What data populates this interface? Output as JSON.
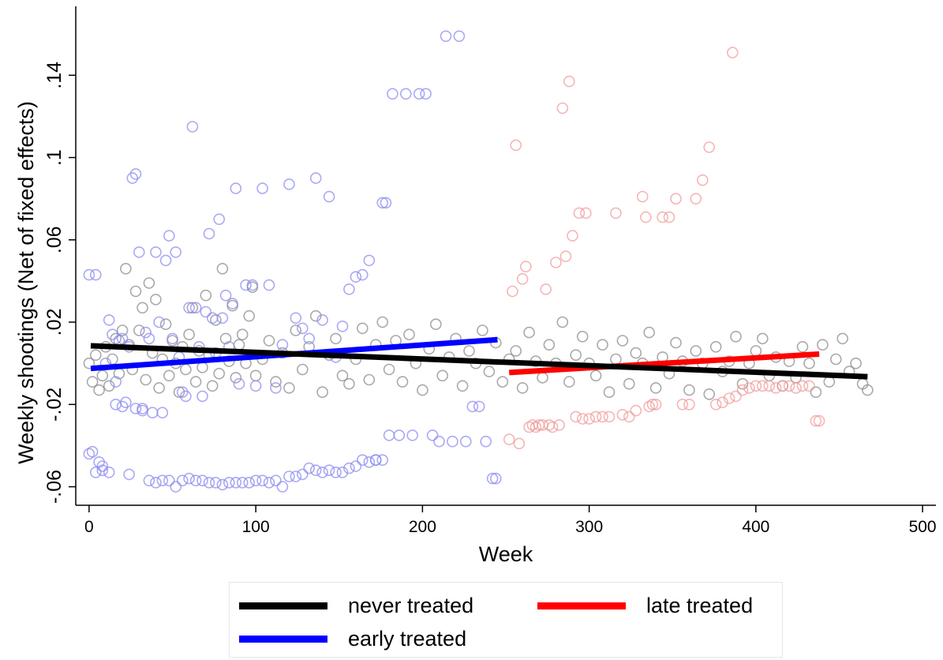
{
  "chart_data": {
    "type": "scatter",
    "title": "",
    "xlabel": "Week",
    "ylabel": "Weekly shootings (Net of fixed effects)",
    "xlim": [
      -8,
      508
    ],
    "ylim": [
      -0.069,
      0.1735
    ],
    "xticks": [
      0,
      100,
      200,
      300,
      400,
      500
    ],
    "xtick_labels": [
      "0",
      "100",
      "200",
      "300",
      "400",
      "500"
    ],
    "yticks": [
      -0.06,
      -0.02,
      0.02,
      0.06,
      0.1,
      0.14
    ],
    "ytick_labels": [
      "-.06",
      "-.02",
      ".02",
      ".06",
      ".1",
      ".14"
    ],
    "grid": false,
    "legend_position": "bottom",
    "series": [
      {
        "name": "never treated",
        "color": "#000000",
        "marker_color": "#8c8c8c",
        "fit": {
          "x": [
            1,
            467
          ],
          "y": [
            0.0085,
            -0.0065
          ]
        },
        "points": {
          "x": [
            0,
            2,
            4,
            6,
            8,
            10,
            12,
            14,
            16,
            18,
            20,
            22,
            24,
            26,
            28,
            30,
            32,
            34,
            36,
            38,
            40,
            42,
            44,
            46,
            48,
            50,
            52,
            54,
            56,
            58,
            60,
            62,
            64,
            66,
            68,
            70,
            72,
            74,
            76,
            78,
            80,
            82,
            84,
            86,
            88,
            90,
            92,
            94,
            96,
            98,
            100,
            104,
            108,
            112,
            116,
            120,
            124,
            128,
            132,
            136,
            140,
            144,
            148,
            152,
            156,
            160,
            164,
            168,
            172,
            176,
            180,
            184,
            188,
            192,
            196,
            200,
            204,
            208,
            212,
            216,
            220,
            224,
            228,
            232,
            236,
            240,
            244,
            248,
            252,
            256,
            260,
            264,
            268,
            272,
            276,
            280,
            284,
            288,
            292,
            296,
            300,
            304,
            308,
            312,
            316,
            320,
            324,
            328,
            332,
            336,
            340,
            344,
            348,
            352,
            356,
            360,
            364,
            368,
            372,
            376,
            380,
            384,
            388,
            392,
            396,
            400,
            404,
            408,
            412,
            416,
            420,
            424,
            428,
            432,
            436,
            440,
            444,
            448,
            452,
            456,
            460,
            464,
            467
          ],
          "y": [
            0.0,
            -0.009,
            0.004,
            -0.013,
            -0.006,
            0.008,
            -0.011,
            0.002,
            0.012,
            -0.005,
            0.016,
            0.046,
            0.009,
            -0.003,
            0.035,
            0.016,
            0.027,
            -0.008,
            0.039,
            0.005,
            0.031,
            -0.012,
            0.002,
            0.019,
            -0.006,
            0.011,
            0.0,
            -0.014,
            0.008,
            -0.003,
            0.014,
            0.027,
            -0.009,
            0.006,
            -0.002,
            0.033,
            0.004,
            -0.011,
            0.021,
            -0.005,
            0.046,
            0.012,
            0.001,
            0.028,
            -0.007,
            0.009,
            0.014,
            0.0,
            0.023,
            0.037,
            -0.006,
            0.002,
            0.011,
            -0.009,
            0.005,
            -0.012,
            0.016,
            -0.003,
            0.008,
            0.023,
            -0.014,
            0.004,
            0.012,
            -0.006,
            -0.01,
            0.002,
            0.017,
            -0.008,
            0.009,
            0.02,
            -0.003,
            0.011,
            -0.009,
            0.014,
            0.0,
            -0.013,
            0.007,
            0.019,
            -0.006,
            0.003,
            0.012,
            -0.011,
            0.006,
            0.0,
            0.016,
            -0.004,
            0.01,
            -0.009,
            0.002,
            0.006,
            -0.012,
            0.015,
            0.001,
            -0.007,
            0.009,
            0.0,
            0.02,
            -0.009,
            0.004,
            0.013,
            0.0,
            -0.006,
            0.009,
            -0.014,
            0.002,
            0.011,
            -0.01,
            0.005,
            0.0,
            0.015,
            -0.012,
            0.003,
            -0.005,
            0.01,
            0.001,
            -0.013,
            0.006,
            0.0,
            -0.015,
            0.008,
            -0.004,
            0.001,
            0.013,
            -0.01,
            0.0,
            0.006,
            0.012,
            -0.006,
            0.003,
            -0.011,
            0.001,
            -0.007,
            0.008,
            0.0,
            -0.014,
            0.009,
            -0.009,
            0.002,
            0.012,
            -0.004,
            0.0,
            -0.01,
            -0.013
          ]
        }
      },
      {
        "name": "early treated",
        "color": "#0000ff",
        "marker_color": "#8c8cf2",
        "fit": {
          "x": [
            1,
            245
          ],
          "y": [
            -0.0025,
            0.0115
          ]
        },
        "points": {
          "x": [
            0,
            2,
            4,
            6,
            8,
            10,
            12,
            14,
            16,
            18,
            20,
            22,
            24,
            26,
            28,
            30,
            32,
            34,
            36,
            38,
            40,
            42,
            44,
            46,
            48,
            50,
            52,
            54,
            56,
            58,
            60,
            62,
            64,
            66,
            68,
            70,
            72,
            74,
            76,
            78,
            80,
            82,
            84,
            86,
            88,
            90,
            94,
            98,
            100,
            104,
            108,
            112,
            116,
            120,
            124,
            128,
            132,
            136,
            140,
            144,
            148,
            152,
            156,
            160,
            164,
            168,
            172,
            176,
            178,
            180,
            182,
            186,
            190,
            194,
            198,
            202,
            206,
            210,
            214,
            218,
            222,
            226,
            230,
            234,
            238,
            242,
            244,
            0,
            4,
            8,
            12,
            16,
            20,
            24,
            28,
            32,
            36,
            40,
            44,
            48,
            52,
            56,
            60,
            64,
            68,
            72,
            76,
            80,
            84,
            88,
            92,
            96,
            100,
            104,
            108,
            112,
            116,
            120,
            124,
            128,
            132,
            136,
            140,
            144,
            148,
            152,
            156,
            160,
            164,
            168,
            172,
            176
          ],
          "y": [
            0.043,
            -0.043,
            0.043,
            -0.048,
            -0.05,
            0.0,
            0.021,
            0.014,
            -0.009,
            0.011,
            0.012,
            -0.019,
            0.008,
            0.09,
            0.092,
            0.054,
            -0.023,
            0.015,
            0.012,
            -0.024,
            0.054,
            0.02,
            -0.024,
            0.05,
            0.062,
            0.012,
            0.054,
            0.003,
            -0.014,
            -0.016,
            0.027,
            0.115,
            0.027,
            0.008,
            -0.016,
            0.025,
            0.063,
            0.022,
            0.005,
            0.07,
            0.022,
            0.033,
            0.008,
            0.029,
            0.085,
            -0.01,
            0.038,
            0.038,
            -0.011,
            0.085,
            0.038,
            -0.012,
            0.009,
            0.087,
            0.022,
            0.017,
            0.012,
            0.09,
            0.021,
            0.081,
            0.003,
            0.018,
            0.036,
            0.042,
            0.043,
            0.05,
            -0.047,
            0.078,
            0.078,
            -0.035,
            0.131,
            -0.035,
            0.131,
            -0.035,
            0.131,
            0.131,
            -0.035,
            -0.038,
            0.159,
            -0.038,
            0.159,
            -0.038,
            -0.021,
            -0.021,
            -0.038,
            -0.056,
            -0.056,
            -0.044,
            -0.053,
            -0.052,
            -0.053,
            -0.02,
            -0.021,
            -0.054,
            -0.022,
            -0.022,
            -0.057,
            -0.058,
            -0.057,
            -0.057,
            -0.06,
            -0.057,
            -0.056,
            -0.057,
            -0.057,
            -0.058,
            -0.058,
            -0.059,
            -0.058,
            -0.058,
            -0.058,
            -0.058,
            -0.057,
            -0.057,
            -0.058,
            -0.057,
            -0.06,
            -0.055,
            -0.055,
            -0.054,
            -0.051,
            -0.052,
            -0.053,
            -0.052,
            -0.053,
            -0.053,
            -0.051,
            -0.05,
            -0.047,
            -0.048,
            -0.047,
            -0.047
          ]
        }
      },
      {
        "name": "late treated",
        "color": "#ff0000",
        "marker_color": "#f29c9c",
        "fit": {
          "x": [
            252,
            438
          ],
          "y": [
            -0.0045,
            0.0045
          ]
        },
        "points": {
          "x": [
            252,
            254,
            256,
            258,
            260,
            262,
            264,
            266,
            268,
            270,
            272,
            274,
            276,
            278,
            280,
            282,
            284,
            286,
            288,
            290,
            292,
            294,
            296,
            298,
            300,
            304,
            308,
            312,
            316,
            320,
            324,
            328,
            332,
            334,
            336,
            338,
            340,
            344,
            348,
            352,
            356,
            360,
            364,
            368,
            372,
            376,
            380,
            384,
            386,
            388,
            392,
            396,
            400,
            404,
            408,
            412,
            416,
            420,
            424,
            428,
            432,
            436,
            438
          ],
          "y": [
            -0.037,
            0.035,
            0.106,
            -0.039,
            0.041,
            0.047,
            -0.031,
            -0.03,
            -0.031,
            -0.03,
            -0.03,
            0.036,
            -0.03,
            -0.031,
            0.049,
            -0.03,
            0.124,
            0.052,
            0.137,
            0.062,
            -0.026,
            0.073,
            -0.027,
            0.073,
            -0.027,
            -0.026,
            -0.026,
            -0.026,
            0.073,
            -0.025,
            -0.026,
            -0.023,
            0.081,
            0.071,
            -0.021,
            -0.02,
            -0.02,
            0.071,
            0.071,
            0.08,
            -0.02,
            -0.02,
            0.08,
            0.089,
            0.105,
            -0.02,
            -0.019,
            -0.017,
            0.151,
            -0.016,
            -0.013,
            -0.012,
            -0.011,
            -0.011,
            -0.011,
            -0.012,
            -0.011,
            -0.011,
            -0.012,
            -0.011,
            -0.011,
            -0.028,
            -0.028
          ]
        }
      }
    ]
  },
  "legend": {
    "items": [
      {
        "label": "never treated",
        "color": "#000000"
      },
      {
        "label": "late treated",
        "color": "#ff0000"
      },
      {
        "label": "early treated",
        "color": "#0000ff"
      }
    ]
  }
}
